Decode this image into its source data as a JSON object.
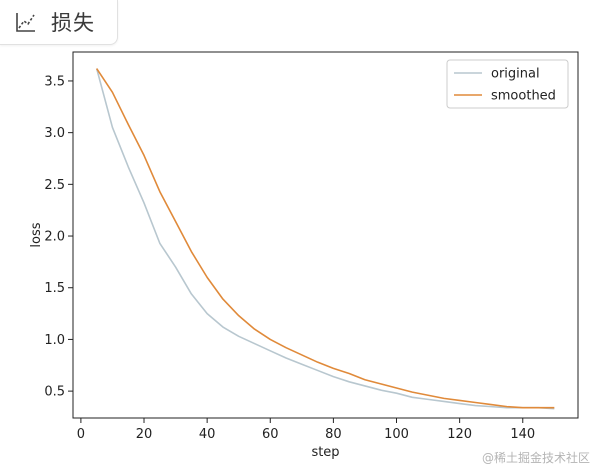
{
  "tab": {
    "label": "损失",
    "icon": "chart-line-icon"
  },
  "watermark": "@稀土掘金技术社区",
  "colors": {
    "original": "#b8c7cf",
    "smoothed": "#e08a3a",
    "axis": "#222222"
  },
  "chart_data": {
    "type": "line",
    "xlabel": "step",
    "ylabel": "loss",
    "xlim": [
      -2.5,
      157.5
    ],
    "ylim": [
      0.24,
      3.78
    ],
    "xticks": [
      0,
      20,
      40,
      60,
      80,
      100,
      120,
      140
    ],
    "yticks": [
      0.5,
      1.0,
      1.5,
      2.0,
      2.5,
      3.0,
      3.5
    ],
    "ytick_labels": [
      "0.5",
      "1.0",
      "1.5",
      "2.0",
      "2.5",
      "3.0",
      "3.5"
    ],
    "grid": false,
    "legend": "top-right",
    "x": [
      5,
      10,
      15,
      20,
      25,
      30,
      35,
      40,
      45,
      50,
      55,
      60,
      65,
      70,
      75,
      80,
      85,
      90,
      95,
      100,
      105,
      110,
      115,
      120,
      125,
      130,
      135,
      140,
      145,
      150
    ],
    "series": [
      {
        "name": "original",
        "values": [
          3.62,
          3.05,
          2.67,
          2.32,
          1.93,
          1.7,
          1.44,
          1.25,
          1.12,
          1.03,
          0.96,
          0.89,
          0.82,
          0.76,
          0.7,
          0.64,
          0.59,
          0.55,
          0.51,
          0.48,
          0.44,
          0.42,
          0.4,
          0.38,
          0.36,
          0.35,
          0.34,
          0.34,
          0.34,
          0.33
        ]
      },
      {
        "name": "smoothed",
        "values": [
          3.62,
          3.39,
          3.08,
          2.78,
          2.43,
          2.14,
          1.85,
          1.6,
          1.39,
          1.23,
          1.1,
          1.0,
          0.92,
          0.85,
          0.78,
          0.72,
          0.67,
          0.61,
          0.57,
          0.53,
          0.49,
          0.46,
          0.43,
          0.41,
          0.39,
          0.37,
          0.35,
          0.34,
          0.34,
          0.34
        ]
      }
    ]
  }
}
